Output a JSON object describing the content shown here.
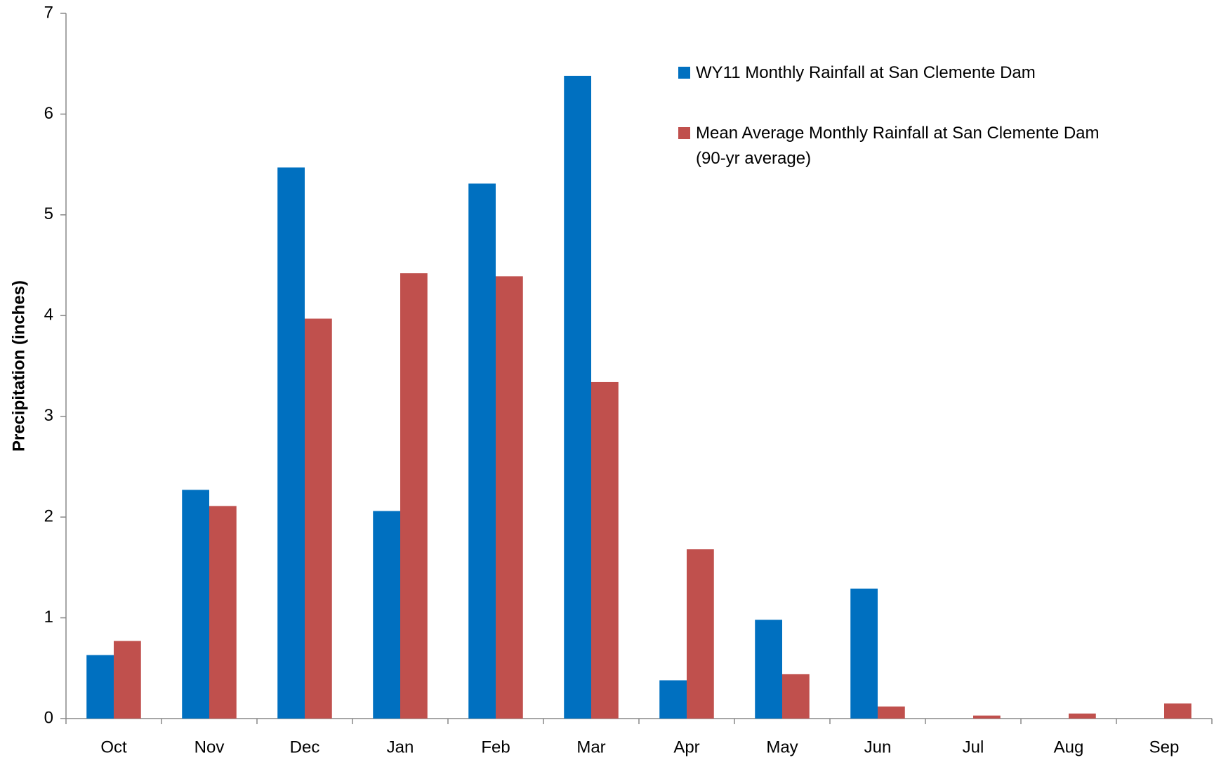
{
  "chart_data": {
    "type": "bar",
    "y_label": "Precipitation (inches)",
    "categories": [
      "Oct",
      "Nov",
      "Dec",
      "Jan",
      "Feb",
      "Mar",
      "Apr",
      "May",
      "Jun",
      "Jul",
      "Aug",
      "Sep"
    ],
    "series": [
      {
        "name": "WY11 Monthly Rainfall at San Clemente Dam",
        "color": "#0070c0",
        "values": [
          0.63,
          2.27,
          5.47,
          2.06,
          5.31,
          6.38,
          0.38,
          0.98,
          1.29,
          0,
          0,
          0
        ]
      },
      {
        "name": "Mean Average Monthly Rainfall at San Clemente Dam (90-yr average)",
        "color": "#c0504d",
        "values": [
          0.77,
          2.11,
          3.97,
          4.42,
          4.39,
          3.34,
          1.68,
          0.44,
          0.12,
          0.03,
          0.05,
          0.15
        ]
      }
    ],
    "ylim": [
      0,
      7
    ],
    "yticks": [
      0,
      1,
      2,
      3,
      4,
      5,
      6,
      7
    ],
    "grid": false
  }
}
